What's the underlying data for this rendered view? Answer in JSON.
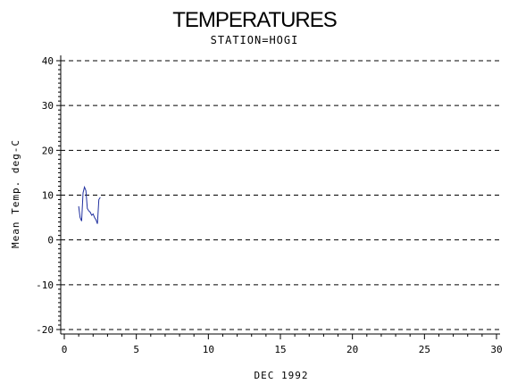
{
  "chart_data": {
    "type": "line",
    "title": "TEMPERATURES",
    "subtitle": "STATION=HOGI",
    "xlabel": "DEC 1992",
    "ylabel": "Mean Temp. deg-C",
    "xlim": [
      0,
      30
    ],
    "ylim": [
      -20,
      40
    ],
    "xticks": [
      0,
      5,
      10,
      15,
      20,
      25,
      30
    ],
    "yticks": [
      -20,
      -10,
      0,
      10,
      20,
      30,
      40
    ],
    "x_tick_labels": [
      "0",
      "5",
      "10",
      "15",
      "20",
      "25",
      "30"
    ],
    "y_tick_labels": [
      "-20",
      "-10",
      "0",
      "10",
      "20",
      "30",
      "40"
    ],
    "grid": "horizontal dashed at major y ticks",
    "colors": {
      "series": "#1f2f9e",
      "axis": "#000000"
    },
    "series": [
      {
        "x": [
          1.0,
          1.1,
          1.2,
          1.3,
          1.4,
          1.5,
          1.6,
          1.7,
          1.8,
          1.9,
          2.0,
          2.1,
          2.2,
          2.3,
          2.4,
          2.5
        ],
        "y": [
          7.5,
          5.0,
          4.2,
          10.5,
          11.8,
          11.0,
          7.0,
          6.5,
          6.2,
          5.5,
          5.8,
          5.0,
          4.5,
          3.6,
          9.0,
          9.5
        ]
      }
    ]
  }
}
